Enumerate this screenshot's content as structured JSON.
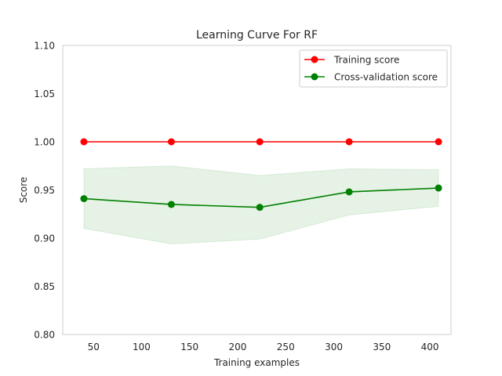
{
  "chart_data": {
    "type": "line",
    "title": "Learning Curve For RF",
    "xlabel": "Training examples",
    "ylabel": "Score",
    "xlim": [
      18,
      422
    ],
    "ylim": [
      0.8,
      1.1
    ],
    "xticks": [
      50,
      100,
      150,
      200,
      250,
      300,
      350,
      400
    ],
    "yticks": [
      0.8,
      0.85,
      0.9,
      0.95,
      1.0,
      1.05,
      1.1
    ],
    "ytick_labels": [
      "0.80",
      "0.85",
      "0.90",
      "0.95",
      "1.00",
      "1.05",
      "1.10"
    ],
    "grid": false,
    "legend_position": "top-right",
    "x": [
      40,
      131,
      223,
      316,
      409
    ],
    "series": [
      {
        "name": "Training score",
        "color": "#ff0000",
        "values": [
          1.0,
          1.0,
          1.0,
          1.0,
          1.0
        ],
        "band_lower": [
          1.0,
          1.0,
          1.0,
          1.0,
          1.0
        ],
        "band_upper": [
          1.0,
          1.0,
          1.0,
          1.0,
          1.0
        ]
      },
      {
        "name": "Cross-validation score",
        "color": "#008000",
        "band_color": "#008000",
        "values": [
          0.941,
          0.935,
          0.932,
          0.948,
          0.952
        ],
        "band_lower": [
          0.91,
          0.894,
          0.899,
          0.924,
          0.933
        ],
        "band_upper": [
          0.972,
          0.975,
          0.965,
          0.972,
          0.971
        ]
      }
    ]
  }
}
